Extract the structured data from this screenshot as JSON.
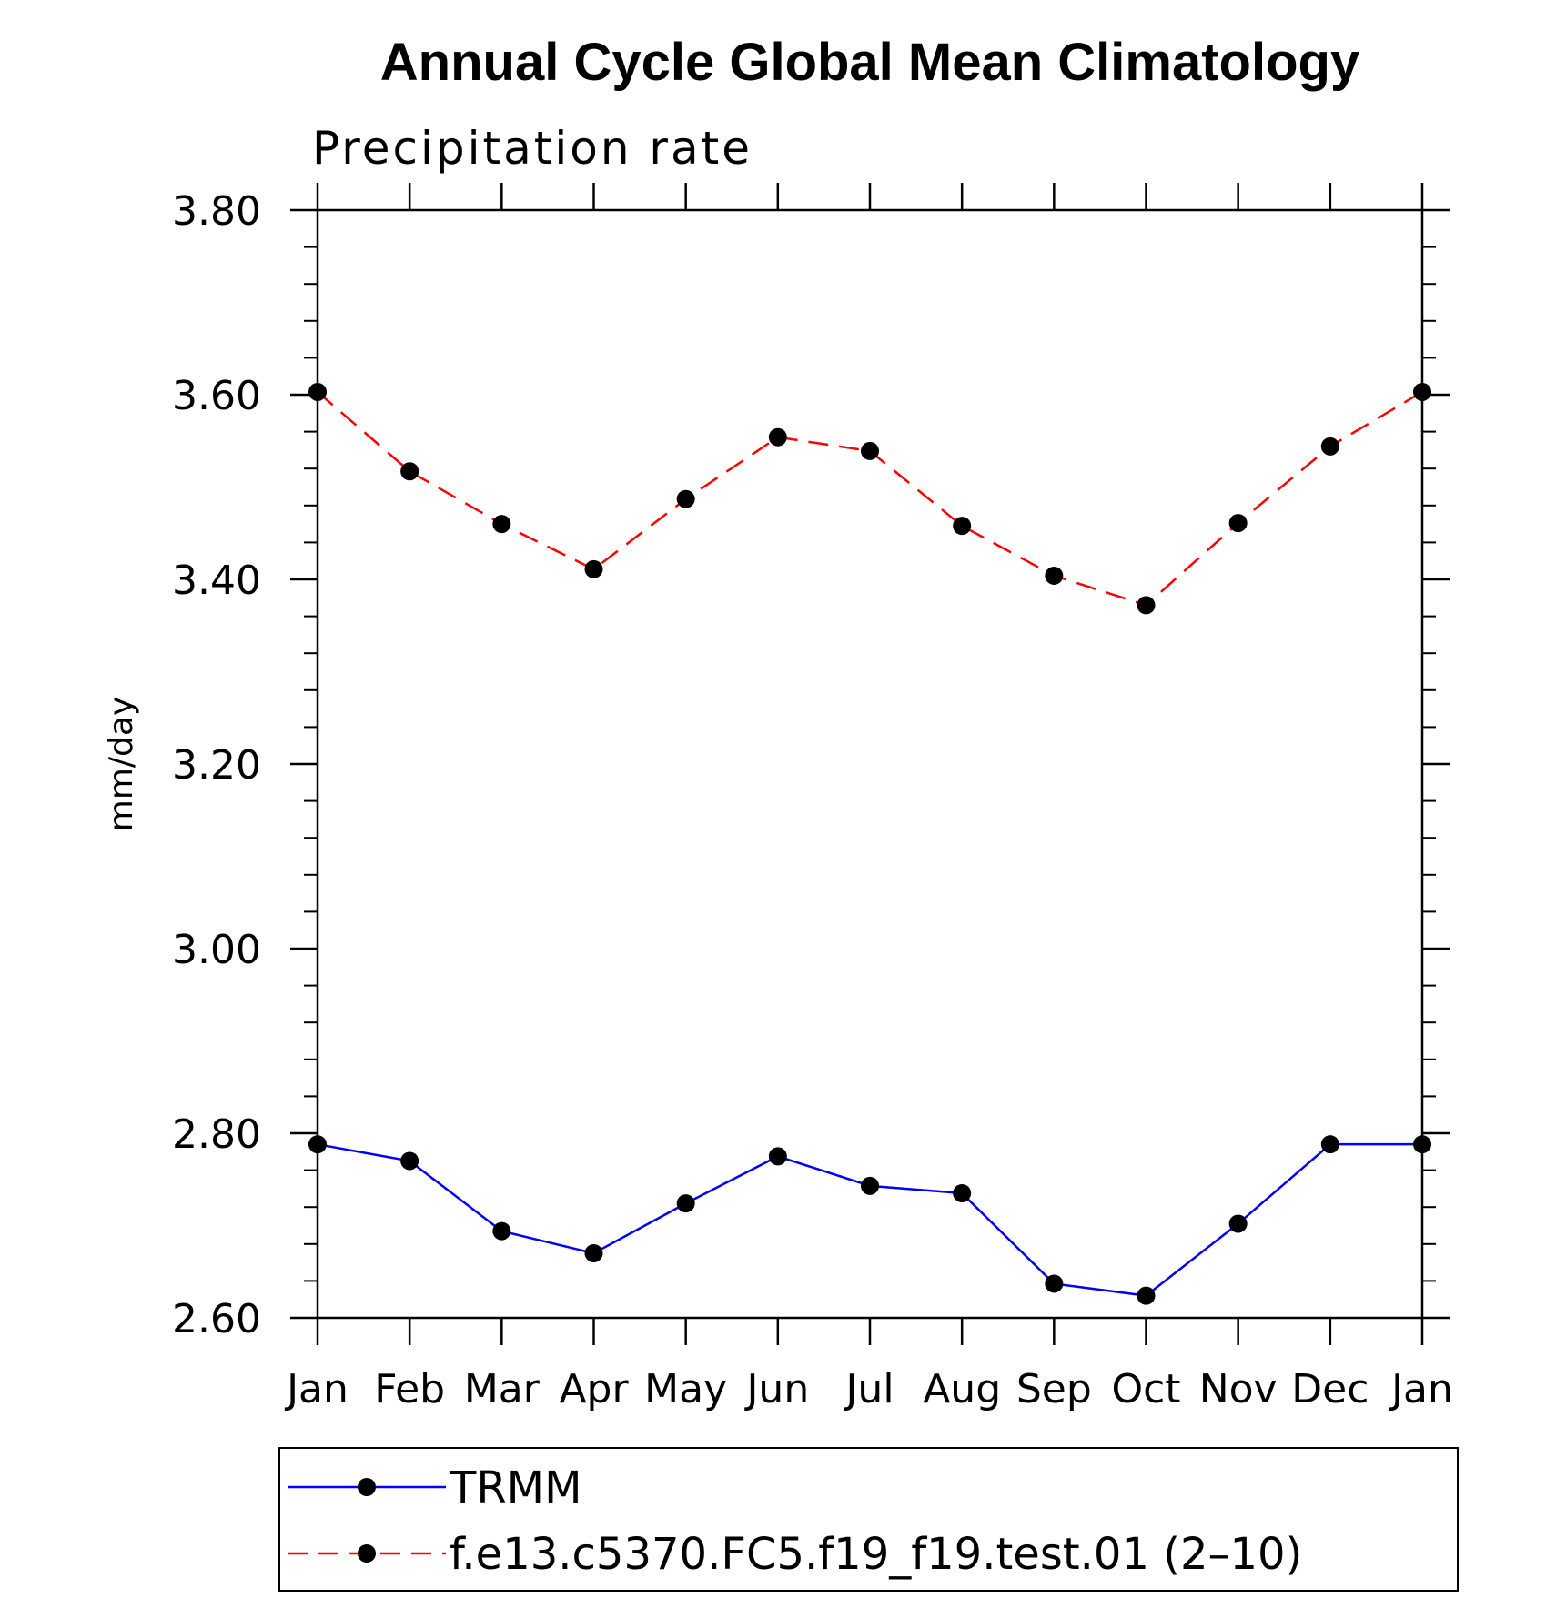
{
  "chart_data": {
    "type": "line",
    "title": "Annual Cycle Global Mean Climatology",
    "subtitle": "Precipitation rate",
    "ylabel": "mm/day",
    "xlabel": "",
    "categories": [
      "Jan",
      "Feb",
      "Mar",
      "Apr",
      "May",
      "Jun",
      "Jul",
      "Aug",
      "Sep",
      "Oct",
      "Nov",
      "Dec",
      "Jan"
    ],
    "ylim": [
      2.6,
      3.8
    ],
    "yticks": [
      "2.60",
      "2.80",
      "3.00",
      "3.20",
      "3.40",
      "3.60",
      "3.80"
    ],
    "grid": false,
    "legend_position": "bottom",
    "series": [
      {
        "name": "TRMM",
        "color": "#0000ff",
        "line_style": "solid",
        "marker": "filled-circle",
        "values": [
          2.788,
          2.77,
          2.694,
          2.67,
          2.724,
          2.775,
          2.743,
          2.735,
          2.637,
          2.624,
          2.702,
          2.788,
          2.788
        ]
      },
      {
        "name": "f.e13.c5370.FC5.f19_f19.test.01 (2–10)",
        "color": "#ff0000",
        "line_style": "dashed",
        "marker": "filled-circle",
        "values": [
          3.603,
          3.517,
          3.46,
          3.411,
          3.487,
          3.554,
          3.539,
          3.458,
          3.404,
          3.372,
          3.461,
          3.544,
          3.603
        ]
      }
    ]
  }
}
